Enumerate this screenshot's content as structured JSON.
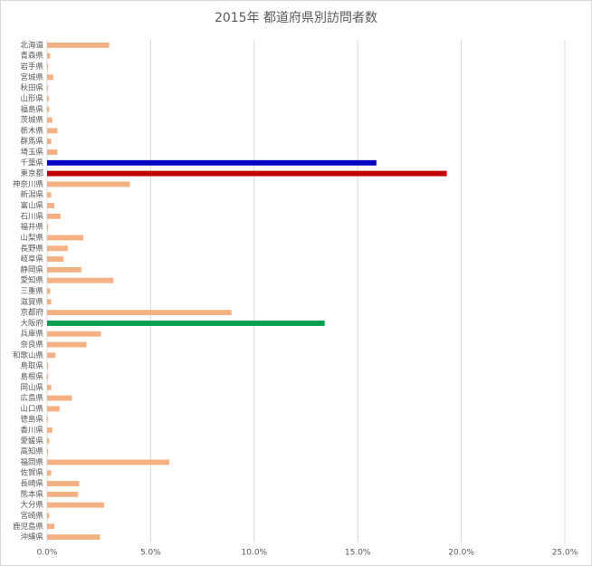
{
  "chart_data": {
    "type": "bar",
    "orientation": "horizontal",
    "title": "2015年 都道府県別訪問者数",
    "categories": [
      "北海道",
      "青森県",
      "岩手県",
      "宮城県",
      "秋田県",
      "山形県",
      "福島県",
      "茨城県",
      "栃木県",
      "群馬県",
      "埼玉県",
      "千葉県",
      "東京都",
      "神奈川県",
      "新潟県",
      "富山県",
      "石川県",
      "福井県",
      "山梨県",
      "長野県",
      "岐阜県",
      "静岡県",
      "愛知県",
      "三重県",
      "滋賀県",
      "京都府",
      "大阪府",
      "兵庫県",
      "奈良県",
      "和歌山県",
      "鳥取県",
      "島根県",
      "岡山県",
      "広島県",
      "山口県",
      "徳島県",
      "香川県",
      "愛媛県",
      "高知県",
      "福岡県",
      "佐賀県",
      "長崎県",
      "熊本県",
      "大分県",
      "宮崎県",
      "鹿児島県",
      "沖縄県"
    ],
    "values": [
      3.0,
      0.15,
      0.05,
      0.3,
      0.05,
      0.08,
      0.1,
      0.25,
      0.5,
      0.2,
      0.5,
      15.9,
      19.3,
      4.0,
      0.2,
      0.35,
      0.65,
      0.05,
      1.75,
      1.0,
      0.8,
      1.65,
      3.2,
      0.15,
      0.2,
      8.9,
      13.4,
      2.6,
      1.9,
      0.4,
      0.05,
      0.05,
      0.2,
      1.2,
      0.6,
      0.05,
      0.25,
      0.1,
      0.05,
      5.9,
      0.2,
      1.55,
      1.5,
      2.75,
      0.1,
      0.35,
      2.55
    ],
    "color": "#f4b183",
    "highlights": [
      {
        "index": 11,
        "color": "#0000c0"
      },
      {
        "index": 12,
        "color": "#c00000"
      },
      {
        "index": 26,
        "color": "#00a050"
      }
    ],
    "xlim": [
      0,
      25
    ],
    "xticks": [
      {
        "value": 0,
        "label": "0.0%"
      },
      {
        "value": 5,
        "label": "5.0%"
      },
      {
        "value": 10,
        "label": "10.0%"
      },
      {
        "value": 15,
        "label": "15.0%"
      },
      {
        "value": 20,
        "label": "20.0%"
      },
      {
        "value": 25,
        "label": "25.0%"
      }
    ],
    "grid": true
  }
}
